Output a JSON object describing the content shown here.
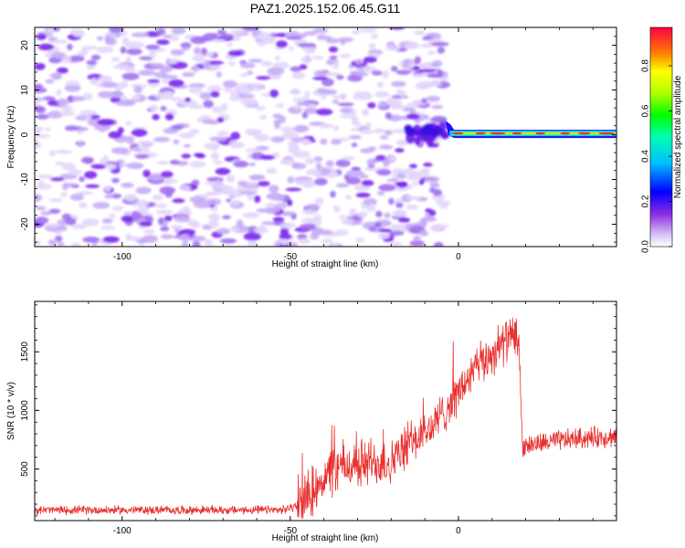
{
  "chart_data": [
    {
      "type": "heatmap",
      "title": "PAZ1.2025.152.06.45.G11",
      "xlabel": "Height of straight line (km)",
      "ylabel": "Frequency (Hz)",
      "xlim": [
        -126,
        47
      ],
      "ylim": [
        -25,
        24
      ],
      "xticks": [
        -100,
        -50,
        0
      ],
      "yticks": [
        -20,
        -10,
        0,
        10,
        20
      ],
      "colorbar": {
        "label": "Normalized spectral amplitude",
        "range": [
          0.0,
          0.97
        ],
        "ticks": [
          "0.0",
          "0.2",
          "0.4",
          "0.6",
          "0.8"
        ],
        "colormap": "rainbow"
      },
      "description_values": {
        "noise_region_x": [
          -126,
          -4
        ],
        "signal_line_frequency": 0.3,
        "signal_region_x": [
          -4,
          47
        ]
      }
    },
    {
      "type": "line",
      "xlabel": "Height of straight line (km)",
      "ylabel": "SNR (10 * v/v)",
      "xlim": [
        -126,
        47
      ],
      "ylim": [
        60,
        1930
      ],
      "xticks": [
        -100,
        -50,
        0
      ],
      "yticks": [
        500,
        1000,
        1500
      ],
      "line_color": "#e8302e",
      "envelope": [
        {
          "x": -126,
          "y": 150
        },
        {
          "x": -80,
          "y": 150
        },
        {
          "x": -52,
          "y": 150
        },
        {
          "x": -47,
          "y": 200
        },
        {
          "x": -42,
          "y": 380
        },
        {
          "x": -35,
          "y": 520
        },
        {
          "x": -25,
          "y": 560
        },
        {
          "x": -20,
          "y": 560
        },
        {
          "x": -15,
          "y": 700
        },
        {
          "x": -8,
          "y": 850
        },
        {
          "x": 0,
          "y": 1150
        },
        {
          "x": 5,
          "y": 1350
        },
        {
          "x": 10,
          "y": 1480
        },
        {
          "x": 15,
          "y": 1620
        },
        {
          "x": 18,
          "y": 1600
        },
        {
          "x": 19,
          "y": 700
        },
        {
          "x": 25,
          "y": 720
        },
        {
          "x": 35,
          "y": 760
        },
        {
          "x": 47,
          "y": 780
        }
      ]
    }
  ]
}
